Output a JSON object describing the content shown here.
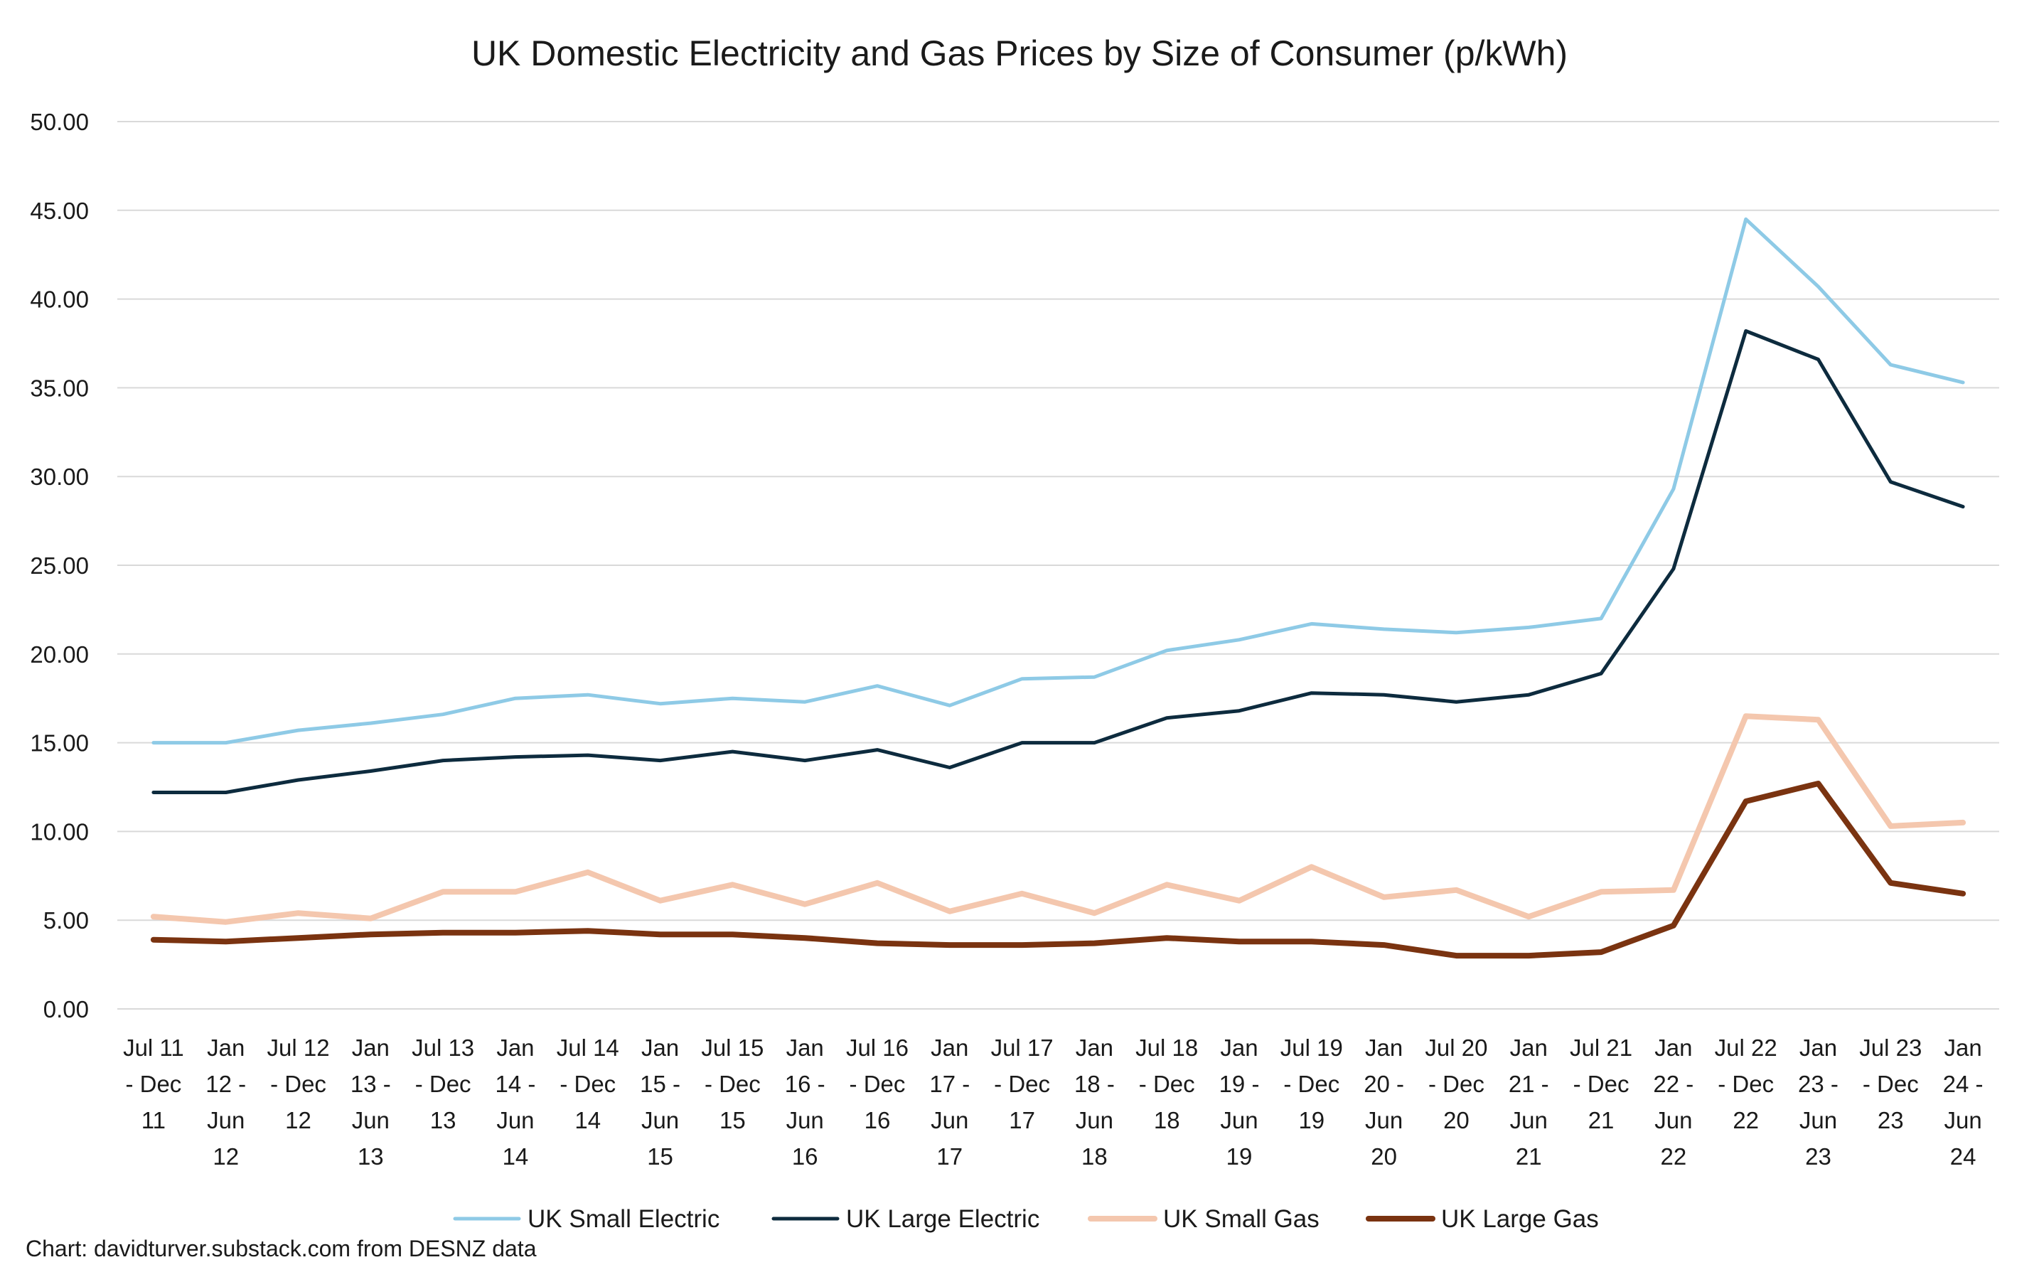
{
  "chart_data": {
    "type": "line",
    "title": "UK Domestic Electricity and Gas Prices by Size of Consumer (p/kWh)",
    "xlabel": "",
    "ylabel": "",
    "ylim": [
      0,
      50
    ],
    "yticks": [
      "0.00",
      "5.00",
      "10.00",
      "15.00",
      "20.00",
      "25.00",
      "30.00",
      "35.00",
      "40.00",
      "45.00",
      "50.00"
    ],
    "grid": "horizontal",
    "legend_position": "bottom",
    "categories": [
      [
        "Jul 11",
        "- Dec",
        "11"
      ],
      [
        "Jan",
        "12 -",
        "Jun",
        "12"
      ],
      [
        "Jul 12",
        "- Dec",
        "12"
      ],
      [
        "Jan",
        "13 -",
        "Jun",
        "13"
      ],
      [
        "Jul 13",
        "- Dec",
        "13"
      ],
      [
        "Jan",
        "14 -",
        "Jun",
        "14"
      ],
      [
        "Jul 14",
        "- Dec",
        "14"
      ],
      [
        "Jan",
        "15 -",
        "Jun",
        "15"
      ],
      [
        "Jul 15",
        "- Dec",
        "15"
      ],
      [
        "Jan",
        "16 -",
        "Jun",
        "16"
      ],
      [
        "Jul 16",
        "- Dec",
        "16"
      ],
      [
        "Jan",
        "17 -",
        "Jun",
        "17"
      ],
      [
        "Jul 17",
        "- Dec",
        "17"
      ],
      [
        "Jan",
        "18 -",
        "Jun",
        "18"
      ],
      [
        "Jul 18",
        "- Dec",
        "18"
      ],
      [
        "Jan",
        "19 -",
        "Jun",
        "19"
      ],
      [
        "Jul 19",
        "- Dec",
        "19"
      ],
      [
        "Jan",
        "20 -",
        "Jun",
        "20"
      ],
      [
        "Jul 20",
        "- Dec",
        "20"
      ],
      [
        "Jan",
        "21 -",
        "Jun",
        "21"
      ],
      [
        "Jul 21",
        "- Dec",
        "21"
      ],
      [
        "Jan",
        "22 -",
        "Jun",
        "22"
      ],
      [
        "Jul 22",
        "- Dec",
        "22"
      ],
      [
        "Jan",
        "23 -",
        "Jun",
        "23"
      ],
      [
        "Jul 23",
        "- Dec",
        "23"
      ],
      [
        "Jan",
        "24 -",
        "Jun",
        "24"
      ]
    ],
    "series": [
      {
        "name": "UK Small Electric",
        "color": "#8ecae6",
        "values": [
          15.0,
          15.0,
          15.7,
          16.1,
          16.6,
          17.5,
          17.7,
          17.2,
          17.5,
          17.3,
          18.2,
          17.1,
          18.6,
          18.7,
          20.2,
          20.8,
          21.7,
          21.4,
          21.2,
          21.5,
          22.0,
          29.3,
          44.5,
          40.7,
          36.3,
          35.3
        ]
      },
      {
        "name": "UK Large Electric",
        "color": "#0d2b3e",
        "values": [
          12.2,
          12.2,
          12.9,
          13.4,
          14.0,
          14.2,
          14.3,
          14.0,
          14.5,
          14.0,
          14.6,
          13.6,
          15.0,
          15.0,
          16.4,
          16.8,
          17.8,
          17.7,
          17.3,
          17.7,
          18.9,
          24.8,
          38.2,
          36.6,
          29.7,
          28.3
        ]
      },
      {
        "name": "UK Small Gas",
        "color": "#f4c7ae",
        "values": [
          5.2,
          4.9,
          5.4,
          5.1,
          6.6,
          6.6,
          7.7,
          6.1,
          7.0,
          5.9,
          7.1,
          5.5,
          6.5,
          5.4,
          7.0,
          6.1,
          8.0,
          6.3,
          6.7,
          5.2,
          6.6,
          6.7,
          16.5,
          16.3,
          10.3,
          10.5
        ]
      },
      {
        "name": "UK Large Gas",
        "color": "#7a3310",
        "values": [
          3.9,
          3.8,
          4.0,
          4.2,
          4.3,
          4.3,
          4.4,
          4.2,
          4.2,
          4.0,
          3.7,
          3.6,
          3.6,
          3.7,
          4.0,
          3.8,
          3.8,
          3.6,
          3.0,
          3.0,
          3.2,
          4.7,
          11.7,
          12.7,
          7.1,
          6.5
        ]
      }
    ]
  },
  "footnote": "Chart: davidturver.substack.com from DESNZ data"
}
